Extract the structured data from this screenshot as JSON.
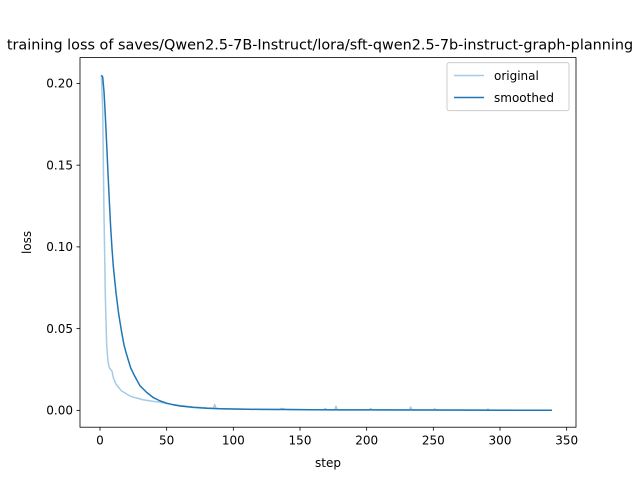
{
  "chart_data": {
    "type": "line",
    "title": "training loss of saves/Qwen2.5-7B-Instruct/lora/sft-qwen2.5-7b-instruct-graph-planning",
    "xlabel": "step",
    "ylabel": "loss",
    "xlim": [
      -15,
      357
    ],
    "ylim": [
      -0.0103,
      0.2158
    ],
    "x_ticks": [
      0,
      50,
      100,
      150,
      200,
      250,
      300,
      350
    ],
    "x_tick_labels": [
      "0",
      "50",
      "100",
      "150",
      "200",
      "250",
      "300",
      "350"
    ],
    "y_ticks": [
      0.0,
      0.05,
      0.1,
      0.15,
      0.2
    ],
    "y_tick_labels": [
      "0.00",
      "0.05",
      "0.10",
      "0.15",
      "0.20"
    ],
    "grid": false,
    "legend_position": "top-right",
    "series": [
      {
        "name": "original",
        "color": "#a6cbe3",
        "x": [
          1,
          2,
          3,
          4,
          5,
          6,
          7,
          8,
          9,
          10,
          11,
          12,
          14,
          16,
          18,
          20,
          22,
          25,
          28,
          32,
          36,
          40,
          45,
          50,
          55,
          60,
          65,
          70,
          75,
          80,
          85,
          86,
          87,
          90,
          95,
          100,
          110,
          120,
          130,
          135,
          136,
          140,
          150,
          160,
          168,
          169,
          170,
          176,
          177,
          178,
          190,
          202,
          203,
          204,
          220,
          232,
          233,
          234,
          250,
          251,
          252,
          270,
          290,
          291,
          292,
          310,
          330,
          339
        ],
        "y": [
          0.205,
          0.185,
          0.12,
          0.07,
          0.04,
          0.03,
          0.026,
          0.025,
          0.024,
          0.02,
          0.018,
          0.016,
          0.014,
          0.012,
          0.011,
          0.01,
          0.009,
          0.008,
          0.0075,
          0.0065,
          0.006,
          0.0055,
          0.005,
          0.0042,
          0.0035,
          0.003,
          0.0025,
          0.002,
          0.0018,
          0.0015,
          0.0013,
          0.0035,
          0.0012,
          0.001,
          0.0009,
          0.0008,
          0.0007,
          0.0006,
          0.0005,
          0.0005,
          0.0012,
          0.0005,
          0.0004,
          0.0004,
          0.0004,
          0.0012,
          0.0004,
          0.0003,
          0.0025,
          0.0003,
          0.0003,
          0.0003,
          0.0012,
          0.0003,
          0.0002,
          0.0002,
          0.002,
          0.0002,
          0.0002,
          0.001,
          0.0002,
          0.0002,
          0.0002,
          0.0008,
          0.0002,
          0.0001,
          0.0001,
          0.0001
        ]
      },
      {
        "name": "smoothed",
        "color": "#1f77b4",
        "x": [
          1,
          2,
          3,
          4,
          5,
          6,
          7,
          8,
          9,
          10,
          12,
          14,
          16,
          18,
          20,
          23,
          26,
          30,
          35,
          40,
          45,
          50,
          55,
          60,
          70,
          80,
          90,
          100,
          120,
          140,
          160,
          180,
          200,
          250,
          300,
          339
        ],
        "y": [
          0.205,
          0.204,
          0.195,
          0.18,
          0.163,
          0.145,
          0.128,
          0.112,
          0.099,
          0.088,
          0.072,
          0.059,
          0.049,
          0.04,
          0.034,
          0.026,
          0.021,
          0.015,
          0.011,
          0.0078,
          0.0058,
          0.0044,
          0.0034,
          0.0027,
          0.0018,
          0.0013,
          0.001,
          0.0008,
          0.0006,
          0.0005,
          0.0004,
          0.0003,
          0.0003,
          0.0002,
          0.0001,
          0.0001
        ]
      }
    ]
  }
}
